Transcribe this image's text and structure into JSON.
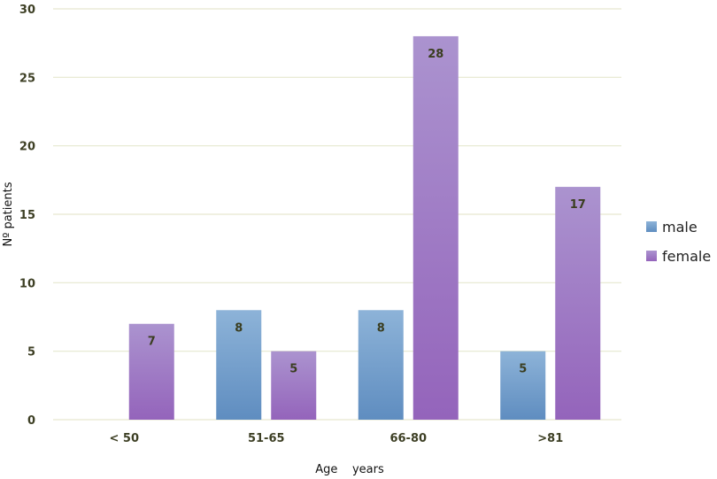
{
  "chart_data": {
    "type": "bar",
    "title": "",
    "xlabel": "Age    years",
    "ylabel": "Nº patients",
    "categories": [
      "< 50",
      "51-65",
      "66-80",
      ">81"
    ],
    "series": [
      {
        "name": "male",
        "values": [
          null,
          8,
          8,
          5
        ],
        "color": "#7aa4cf"
      },
      {
        "name": "female",
        "values": [
          7,
          5,
          28,
          17
        ],
        "color": "#a283c9"
      }
    ],
    "data_labels": {
      "male": [
        "",
        "8",
        "8",
        "5"
      ],
      "female": [
        "7",
        "5",
        "28",
        "17"
      ]
    },
    "ylim": [
      0,
      30
    ],
    "yticks": [
      0,
      5,
      10,
      15,
      20,
      25,
      30
    ],
    "grid": true,
    "legend": "right"
  }
}
